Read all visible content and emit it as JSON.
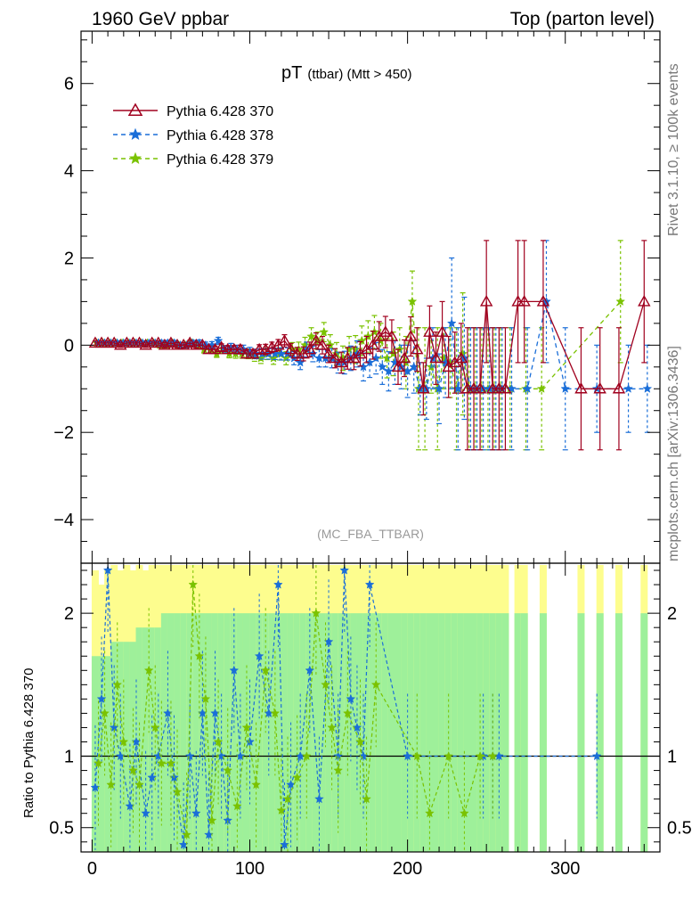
{
  "header": {
    "left": "1960 GeV ppbar",
    "right": "Top (parton level)"
  },
  "side_labels": {
    "rivet": "Rivet 3.1.10, ≥ 100k events",
    "mcplots": "mcplots.cern.ch [arXiv:1306.3436]"
  },
  "chart_data": [
    {
      "type": "line",
      "title_main": "pT",
      "title_sub": "(ttbar) (Mtt > 450)",
      "annotation": "(MC_FBA_TTBAR)",
      "xlim": [
        -7,
        360
      ],
      "ylim": [
        -5,
        7.2
      ],
      "yticks": [
        -4,
        -2,
        0,
        2,
        4,
        6
      ],
      "ytick_labels": [
        "−4",
        "−2",
        "0",
        "2",
        "4",
        "6"
      ],
      "legend_position": "top-left",
      "series": [
        {
          "name": "Pythia 6.428 370",
          "color": "#a0001e",
          "marker": "triangle",
          "dash": "",
          "x": [
            2,
            6,
            10,
            14,
            18,
            22,
            26,
            30,
            34,
            38,
            42,
            46,
            50,
            54,
            58,
            62,
            66,
            70,
            74,
            78,
            82,
            86,
            90,
            94,
            98,
            102,
            106,
            110,
            114,
            118,
            122,
            126,
            130,
            134,
            138,
            142,
            146,
            150,
            154,
            158,
            162,
            166,
            170,
            174,
            178,
            182,
            186,
            190,
            194,
            198,
            202,
            206,
            210,
            214,
            218,
            222,
            226,
            230,
            234,
            238,
            242,
            246,
            250,
            254,
            258,
            262,
            270,
            274,
            286,
            310,
            322,
            334,
            350
          ],
          "y": [
            0.05,
            0.05,
            0.05,
            0.05,
            0.0,
            0.05,
            0.05,
            0.05,
            0.0,
            0.05,
            0.05,
            0.0,
            0.05,
            0.0,
            0.0,
            0.05,
            0.0,
            0.0,
            -0.1,
            -0.1,
            -0.05,
            -0.1,
            -0.1,
            -0.1,
            -0.2,
            -0.2,
            -0.1,
            -0.1,
            -0.05,
            0.0,
            0.1,
            -0.1,
            -0.2,
            -0.2,
            -0.1,
            0.1,
            0.0,
            -0.2,
            -0.3,
            -0.4,
            -0.3,
            -0.3,
            -0.2,
            -0.1,
            0.0,
            0.2,
            0.3,
            0.2,
            -0.5,
            -0.3,
            0.2,
            -0.1,
            -1.0,
            0.3,
            -0.3,
            0.3,
            -0.5,
            -0.4,
            -0.3,
            -1.0,
            -1.0,
            -1.0,
            1.0,
            -1.0,
            -1.0,
            -1.0,
            1.0,
            1.0,
            1.0,
            -1.0,
            -1.0,
            -1.0,
            1.0
          ],
          "err": [
            0.05,
            0.05,
            0.05,
            0.05,
            0.05,
            0.05,
            0.05,
            0.05,
            0.05,
            0.05,
            0.05,
            0.06,
            0.06,
            0.06,
            0.06,
            0.06,
            0.07,
            0.07,
            0.08,
            0.08,
            0.08,
            0.09,
            0.09,
            0.1,
            0.1,
            0.1,
            0.11,
            0.12,
            0.12,
            0.13,
            0.14,
            0.14,
            0.15,
            0.16,
            0.17,
            0.18,
            0.2,
            0.2,
            0.22,
            0.24,
            0.25,
            0.26,
            0.28,
            0.3,
            0.32,
            0.34,
            0.36,
            0.38,
            0.4,
            0.42,
            0.45,
            0.5,
            0.6,
            0.6,
            0.6,
            0.7,
            0.7,
            0.7,
            0.8,
            1.4,
            1.4,
            1.4,
            1.4,
            1.4,
            1.4,
            1.4,
            1.4,
            1.4,
            1.4,
            1.4,
            1.4,
            1.4,
            1.4
          ]
        },
        {
          "name": "Pythia 6.428 378",
          "color": "#1a6ed8",
          "marker": "star",
          "dash": "5,4",
          "x": [
            4,
            8,
            12,
            16,
            20,
            24,
            28,
            32,
            36,
            40,
            44,
            48,
            52,
            56,
            60,
            64,
            68,
            72,
            76,
            80,
            84,
            88,
            92,
            96,
            100,
            104,
            108,
            112,
            116,
            120,
            124,
            128,
            132,
            136,
            140,
            144,
            148,
            152,
            156,
            160,
            164,
            168,
            172,
            176,
            180,
            184,
            188,
            192,
            196,
            200,
            204,
            208,
            212,
            216,
            220,
            224,
            228,
            232,
            236,
            240,
            244,
            248,
            252,
            256,
            260,
            266,
            276,
            288,
            300,
            320,
            340,
            352
          ],
          "y": [
            0.05,
            0.05,
            0.05,
            0.05,
            0.05,
            0.05,
            0.05,
            0.05,
            0.05,
            0.05,
            0.05,
            0.05,
            0.05,
            0.0,
            0.0,
            0.05,
            0.05,
            0.0,
            0.0,
            0.1,
            -0.1,
            -0.05,
            -0.1,
            -0.1,
            -0.15,
            -0.2,
            -0.2,
            -0.2,
            -0.2,
            -0.2,
            -0.2,
            -0.3,
            -0.4,
            -0.1,
            -0.2,
            -0.3,
            -0.3,
            -0.3,
            -0.4,
            -0.4,
            -0.3,
            -0.2,
            -0.5,
            -0.4,
            -0.3,
            -0.5,
            -0.6,
            -0.4,
            -0.5,
            -0.6,
            -0.5,
            -1.0,
            -1.0,
            -0.3,
            -1.0,
            -0.4,
            0.5,
            -1.0,
            -0.3,
            -1.0,
            -1.0,
            -1.0,
            -1.0,
            -1.0,
            -1.0,
            -1.0,
            -1.0,
            1.0,
            -1.0,
            -1.0,
            -1.0,
            -1.0
          ],
          "err": [
            0.05,
            0.05,
            0.05,
            0.05,
            0.05,
            0.05,
            0.05,
            0.05,
            0.05,
            0.05,
            0.06,
            0.06,
            0.06,
            0.06,
            0.06,
            0.06,
            0.07,
            0.07,
            0.08,
            0.08,
            0.09,
            0.09,
            0.1,
            0.1,
            0.1,
            0.11,
            0.12,
            0.12,
            0.13,
            0.14,
            0.14,
            0.15,
            0.16,
            0.17,
            0.18,
            0.2,
            0.2,
            0.22,
            0.24,
            0.26,
            0.28,
            0.3,
            0.32,
            0.34,
            0.36,
            0.4,
            0.45,
            0.5,
            0.5,
            0.6,
            0.6,
            0.6,
            0.7,
            0.7,
            0.8,
            0.8,
            1.5,
            1.4,
            1.4,
            1.4,
            1.4,
            1.4,
            1.4,
            1.4,
            1.4,
            1.4,
            1.4,
            1.4,
            1.4,
            1.0,
            1.0,
            1.0
          ]
        },
        {
          "name": "Pythia 6.428 379",
          "color": "#7ac200",
          "marker": "star",
          "dash": "5,4",
          "x": [
            3,
            7,
            11,
            15,
            19,
            23,
            27,
            31,
            35,
            39,
            43,
            47,
            51,
            55,
            59,
            63,
            67,
            71,
            75,
            79,
            83,
            87,
            91,
            95,
            99,
            103,
            107,
            111,
            115,
            119,
            123,
            127,
            131,
            135,
            139,
            143,
            147,
            151,
            155,
            159,
            163,
            167,
            171,
            175,
            179,
            183,
            187,
            191,
            195,
            199,
            203,
            207,
            211,
            215,
            219,
            223,
            227,
            231,
            235,
            239,
            243,
            247,
            251,
            255,
            259,
            265,
            275,
            285,
            335
          ],
          "y": [
            0.05,
            0.05,
            0.05,
            0.05,
            0.05,
            0.05,
            0.05,
            0.05,
            0.05,
            0.05,
            0.0,
            0.0,
            0.05,
            0.0,
            0.0,
            0.05,
            0.0,
            -0.1,
            -0.1,
            -0.2,
            -0.1,
            -0.2,
            -0.2,
            -0.2,
            -0.2,
            -0.25,
            -0.3,
            -0.2,
            -0.3,
            -0.2,
            -0.3,
            -0.1,
            -0.1,
            0.0,
            0.2,
            0.1,
            0.3,
            0.0,
            -0.2,
            -0.3,
            -0.1,
            -0.1,
            0.1,
            0.2,
            0.3,
            0.1,
            -0.3,
            -0.2,
            -0.1,
            -0.4,
            1.0,
            -1.0,
            -1.0,
            -0.5,
            -1.0,
            -0.3,
            -0.4,
            -1.0,
            -0.2,
            -1.0,
            -1.0,
            -1.0,
            -1.0,
            -1.0,
            -1.0,
            -1.0,
            -1.0,
            -1.0,
            1.0
          ],
          "err": [
            0.05,
            0.05,
            0.05,
            0.05,
            0.05,
            0.05,
            0.05,
            0.05,
            0.05,
            0.05,
            0.06,
            0.06,
            0.06,
            0.06,
            0.06,
            0.07,
            0.07,
            0.08,
            0.08,
            0.08,
            0.09,
            0.09,
            0.1,
            0.1,
            0.11,
            0.12,
            0.12,
            0.13,
            0.14,
            0.14,
            0.15,
            0.16,
            0.17,
            0.18,
            0.2,
            0.2,
            0.22,
            0.24,
            0.26,
            0.28,
            0.3,
            0.32,
            0.34,
            0.36,
            0.38,
            0.4,
            0.45,
            0.5,
            0.5,
            0.6,
            0.7,
            1.4,
            1.4,
            0.6,
            1.4,
            0.7,
            0.8,
            1.4,
            1.4,
            1.4,
            1.4,
            1.4,
            1.4,
            1.4,
            1.4,
            1.4,
            1.4,
            1.4,
            1.4
          ]
        }
      ]
    },
    {
      "type": "line",
      "ylabel": "Ratio to Pythia 6.428 370",
      "xlim": [
        -7,
        360
      ],
      "ylim": [
        0.33,
        2.35
      ],
      "yticks": [
        0.5,
        1,
        2
      ],
      "ytick_labels": [
        "0.5",
        "1",
        "2"
      ],
      "xticks": [
        0,
        100,
        200,
        300
      ],
      "xtick_labels": [
        "0",
        "100",
        "200",
        "300"
      ],
      "reference_line": 1,
      "band_inner_color": "#9ef09a",
      "band_outer_color": "#fdfd8e",
      "bands": {
        "x": [
          2,
          6,
          10,
          14,
          18,
          22,
          26,
          30,
          34,
          38,
          42,
          46,
          50,
          54,
          58,
          62,
          66,
          70,
          74,
          78,
          82,
          86,
          90,
          94,
          98,
          102,
          106,
          110,
          114,
          118,
          122,
          126,
          130,
          134,
          138,
          142,
          146,
          150,
          154,
          158,
          162,
          166,
          170,
          174,
          178,
          182,
          186,
          190,
          194,
          198,
          202,
          206,
          210,
          214,
          218,
          222,
          226,
          230,
          234,
          238,
          242,
          246,
          250,
          254,
          258,
          262,
          270,
          274,
          286,
          310,
          322,
          334,
          350
        ],
        "inner_half": [
          0.7,
          0.7,
          0.7,
          0.8,
          0.8,
          0.8,
          0.8,
          0.9,
          0.9,
          0.9,
          0.9,
          1.0,
          1.0,
          1.0,
          1.0,
          1.0,
          1.0,
          1.0,
          1.0,
          1.0,
          1.0,
          1.0,
          1.0,
          1.0,
          1.0,
          1.0,
          1.0,
          1.0,
          1.0,
          1.0,
          1.0,
          1.0,
          1.0,
          1.0,
          1.0,
          1.0,
          1.0,
          1.0,
          1.0,
          1.0,
          1.0,
          1.0,
          1.0,
          1.0,
          1.0,
          1.0,
          1.0,
          1.0,
          1.0,
          1.0,
          1.0,
          1.0,
          1.0,
          1.0,
          1.0,
          1.0,
          1.0,
          1.0,
          1.0,
          1.0,
          1.0,
          1.0,
          1.0,
          1.0,
          1.0,
          1.0,
          1.0,
          1.0,
          1.0,
          1.0,
          1.0,
          1.0,
          1.0
        ],
        "outer_half": [
          1.3,
          1.2,
          1.3,
          1.4,
          1.3,
          1.4,
          1.3,
          1.4,
          1.3,
          1.4,
          1.4,
          1.5,
          1.4,
          1.5,
          1.5,
          1.5,
          1.5,
          1.5,
          1.5,
          1.5,
          1.5,
          1.5,
          1.5,
          1.5,
          1.5,
          1.5,
          1.5,
          1.5,
          1.5,
          1.5,
          1.5,
          1.5,
          1.5,
          1.5,
          1.5,
          1.5,
          1.5,
          1.5,
          1.5,
          1.5,
          1.5,
          1.5,
          1.5,
          1.5,
          1.5,
          1.5,
          1.5,
          1.5,
          1.5,
          1.5,
          1.5,
          1.5,
          1.5,
          1.5,
          1.5,
          1.5,
          1.5,
          1.5,
          1.5,
          1.5,
          1.5,
          1.5,
          1.5,
          1.5,
          1.5,
          1.5,
          1.5,
          1.5,
          1.5,
          1.5,
          1.5,
          1.5,
          1.5
        ]
      },
      "series": [
        {
          "name": "Pythia 6.428 378",
          "color": "#1a6ed8",
          "x": [
            2,
            6,
            10,
            14,
            18,
            24,
            28,
            34,
            38,
            42,
            48,
            52,
            58,
            62,
            66,
            70,
            74,
            78,
            82,
            86,
            90,
            94,
            100,
            106,
            112,
            118,
            122,
            126,
            132,
            138,
            144,
            150,
            156,
            160,
            164,
            168,
            172,
            176,
            200,
            248,
            254,
            258,
            320
          ],
          "y": [
            0.78,
            1.4,
            2.3,
            1.2,
            1.0,
            0.65,
            1.1,
            0.6,
            0.85,
            1.0,
            1.3,
            0.85,
            0.38,
            1.0,
            0.6,
            1.3,
            0.45,
            1.3,
            1.0,
            0.55,
            1.6,
            1.0,
            1.1,
            1.7,
            1.3,
            2.2,
            0.38,
            0.8,
            1.0,
            1.6,
            0.7,
            1.8,
            1.0,
            2.3,
            1.4,
            1.2,
            1.0,
            2.2,
            1.0,
            1.0,
            1.0,
            1.0,
            1.0
          ]
        },
        {
          "name": "Pythia 6.428 379",
          "color": "#7ac200",
          "x": [
            4,
            8,
            12,
            16,
            20,
            26,
            30,
            36,
            40,
            44,
            50,
            54,
            60,
            64,
            68,
            72,
            76,
            80,
            86,
            92,
            98,
            104,
            110,
            116,
            120,
            124,
            130,
            136,
            142,
            148,
            152,
            156,
            162,
            170,
            174,
            180,
            206,
            214,
            226,
            236,
            246,
            254
          ],
          "y": [
            0.95,
            1.3,
            0.8,
            1.5,
            1.1,
            0.9,
            0.8,
            1.6,
            1.2,
            0.95,
            0.95,
            0.75,
            0.45,
            2.2,
            1.7,
            1.4,
            0.55,
            1.1,
            0.9,
            0.65,
            1.2,
            0.8,
            1.6,
            1.3,
            0.62,
            0.7,
            0.85,
            1.0,
            2.0,
            1.5,
            1.2,
            0.9,
            1.3,
            1.1,
            0.7,
            1.5,
            1.0,
            0.6,
            1.0,
            0.6,
            1.0,
            1.0
          ]
        }
      ]
    }
  ]
}
